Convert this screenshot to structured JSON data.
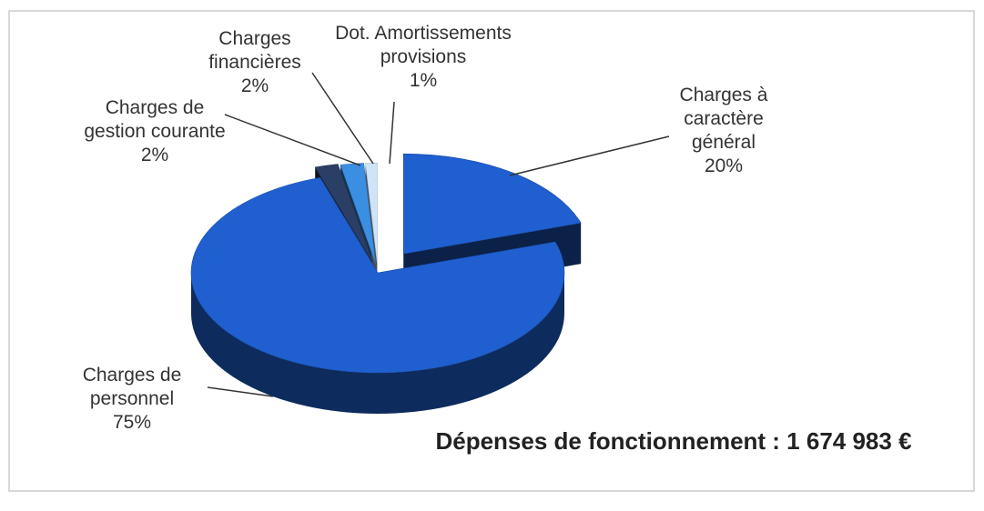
{
  "chart_data": {
    "type": "pie3d",
    "categories": [
      "Charges à caractère général",
      "Charges de personnel",
      "Charges de gestion courante",
      "Charges financières",
      "Dot. Amortissements provisions"
    ],
    "values": [
      20,
      75,
      2,
      2,
      1
    ],
    "value_labels": [
      "20%",
      "75%",
      "2%",
      "2%",
      "1%"
    ],
    "colors": [
      "#1f5fcf",
      "#1f5fcf",
      "#2b3f66",
      "#3a8fe3",
      "#cfe4f8"
    ],
    "annotation": "Dépenses de fonctionnement : 1 674 983 €"
  }
}
